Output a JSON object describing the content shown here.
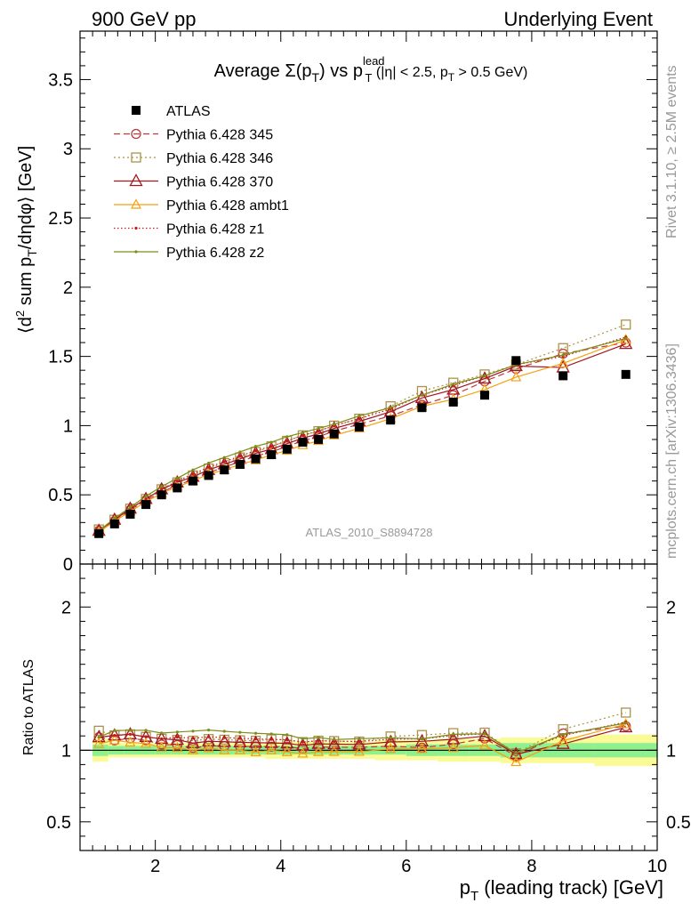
{
  "header": {
    "left": "900 GeV pp",
    "right": "Underlying Event",
    "side_top": "Rivet 3.1.10, ≥ 2.5M events",
    "side_bottom": "mcplots.cern.ch [arXiv:1306.3436]",
    "watermark": "ATLAS_2010_S8894728"
  },
  "plot_title": {
    "prefix": "Average Σ(p",
    "sub_T1": "T",
    "middle": ") vs p",
    "sup_lead": "lead",
    "sub_T2": "T",
    "cut1": " (|η| < 2.5, p",
    "sub_T3": "T",
    "cut2": " > 0.5 GeV)"
  },
  "axes": {
    "ylabel": "⟨d² sum p_T/dηdφ⟩ [GeV]",
    "ylabel_parts": {
      "a": "⟨d",
      "sup": "2",
      "b": " sum p",
      "sub": "T",
      "c": "/dηdφ⟩ [GeV]"
    },
    "ratio_ylabel": "Ratio to ATLAS",
    "xlabel_parts": {
      "a": "p",
      "sub": "T",
      "b": " (leading track) [GeV]"
    }
  },
  "colors": {
    "ATLAS": "#000000",
    "p345": "#be3a3a",
    "p346": "#ac9248",
    "p370": "#a21621",
    "ambt1": "#f5a00f",
    "z1": "#c81818",
    "z2": "#7b8e16",
    "band_inner": "#8ef08e",
    "band_outer": "#fafa96"
  },
  "chart_data": {
    "type": "scatter",
    "xlim": [
      0.8,
      10.0
    ],
    "ylim_main": [
      0,
      3.85
    ],
    "ylim_ratio": [
      0.3,
      2.3
    ],
    "x_ticks": [
      2,
      4,
      6,
      8,
      10
    ],
    "y_ticks_main": [
      0,
      0.5,
      1,
      1.5,
      2,
      2.5,
      3,
      3.5
    ],
    "y_ticks_ratio": [
      0.5,
      1,
      2
    ],
    "legend_position": "top-left",
    "x": [
      1.1,
      1.35,
      1.6,
      1.85,
      2.1,
      2.35,
      2.6,
      2.85,
      3.1,
      3.35,
      3.6,
      3.85,
      4.1,
      4.35,
      4.6,
      4.85,
      5.25,
      5.75,
      6.25,
      6.75,
      7.25,
      7.75,
      8.5,
      9.5
    ],
    "series": [
      {
        "name": "ATLAS",
        "key": "ATLAS",
        "marker": "square_filled",
        "dash": "none",
        "values": [
          0.22,
          0.29,
          0.36,
          0.43,
          0.5,
          0.55,
          0.6,
          0.64,
          0.68,
          0.72,
          0.76,
          0.79,
          0.83,
          0.88,
          0.9,
          0.94,
          0.99,
          1.04,
          1.13,
          1.17,
          1.22,
          1.47,
          1.36,
          1.37
        ]
      },
      {
        "name": "Pythia 6.428 345",
        "key": "p345",
        "marker": "circle_open",
        "dash": "7,4",
        "values": [
          0.24,
          0.31,
          0.39,
          0.46,
          0.52,
          0.57,
          0.61,
          0.66,
          0.7,
          0.74,
          0.78,
          0.81,
          0.85,
          0.89,
          0.92,
          0.96,
          1.01,
          1.07,
          1.15,
          1.22,
          1.32,
          1.41,
          1.52,
          1.6
        ]
      },
      {
        "name": "Pythia 6.428 346",
        "key": "p346",
        "marker": "square_open",
        "dash": "2,3",
        "values": [
          0.25,
          0.32,
          0.4,
          0.47,
          0.54,
          0.59,
          0.64,
          0.69,
          0.73,
          0.77,
          0.81,
          0.85,
          0.89,
          0.93,
          0.96,
          1.0,
          1.05,
          1.14,
          1.25,
          1.31,
          1.37,
          1.44,
          1.56,
          1.73
        ]
      },
      {
        "name": "Pythia 6.428 370",
        "key": "p370",
        "marker": "triangle_open",
        "dash": "none",
        "values": [
          0.24,
          0.32,
          0.4,
          0.47,
          0.54,
          0.59,
          0.63,
          0.68,
          0.72,
          0.76,
          0.8,
          0.83,
          0.87,
          0.91,
          0.94,
          0.98,
          1.03,
          1.1,
          1.2,
          1.26,
          1.34,
          1.43,
          1.42,
          1.59
        ]
      },
      {
        "name": "Pythia 6.428 ambt1",
        "key": "ambt1",
        "marker": "triangle_open_small",
        "dash": "none",
        "values": [
          0.23,
          0.31,
          0.38,
          0.45,
          0.51,
          0.56,
          0.6,
          0.65,
          0.68,
          0.72,
          0.75,
          0.79,
          0.82,
          0.86,
          0.89,
          0.93,
          0.98,
          1.05,
          1.14,
          1.19,
          1.26,
          1.35,
          1.45,
          1.62
        ]
      },
      {
        "name": "Pythia 6.428 z1",
        "key": "z1",
        "marker": "dot",
        "dash": "1.5,2.5",
        "values": [
          0.24,
          0.32,
          0.4,
          0.47,
          0.54,
          0.6,
          0.65,
          0.7,
          0.74,
          0.78,
          0.82,
          0.85,
          0.89,
          0.93,
          0.96,
          1.0,
          1.05,
          1.12,
          1.22,
          1.29,
          1.36,
          1.44,
          1.5,
          1.64
        ]
      },
      {
        "name": "Pythia 6.428 z2",
        "key": "z2",
        "marker": "dot",
        "dash": "none",
        "values": [
          0.24,
          0.33,
          0.41,
          0.49,
          0.56,
          0.62,
          0.68,
          0.73,
          0.77,
          0.81,
          0.85,
          0.88,
          0.92,
          0.95,
          0.98,
          1.01,
          1.07,
          1.13,
          1.22,
          1.3,
          1.36,
          1.44,
          1.51,
          1.63
        ]
      }
    ],
    "ratio_band": {
      "x_edges": [
        1.0,
        1.25,
        1.5,
        1.75,
        2.0,
        2.25,
        2.5,
        2.75,
        3.0,
        3.25,
        3.5,
        3.75,
        4.0,
        4.25,
        4.5,
        4.75,
        5.0,
        5.5,
        6.0,
        6.5,
        7.0,
        7.5,
        8.0,
        9.0,
        10.0
      ],
      "inner_low": [
        0.96,
        0.97,
        0.97,
        0.97,
        0.97,
        0.97,
        0.97,
        0.97,
        0.97,
        0.97,
        0.97,
        0.97,
        0.97,
        0.97,
        0.97,
        0.97,
        0.97,
        0.97,
        0.96,
        0.96,
        0.96,
        0.95,
        0.95,
        0.95
      ],
      "inner_high": [
        1.04,
        1.03,
        1.03,
        1.03,
        1.03,
        1.03,
        1.03,
        1.03,
        1.03,
        1.03,
        1.03,
        1.03,
        1.03,
        1.03,
        1.03,
        1.03,
        1.03,
        1.03,
        1.04,
        1.04,
        1.04,
        1.05,
        1.05,
        1.05
      ],
      "outer_low": [
        0.92,
        0.95,
        0.95,
        0.95,
        0.95,
        0.95,
        0.95,
        0.95,
        0.95,
        0.95,
        0.95,
        0.94,
        0.94,
        0.94,
        0.94,
        0.94,
        0.94,
        0.93,
        0.93,
        0.92,
        0.92,
        0.91,
        0.91,
        0.89
      ],
      "outer_high": [
        1.08,
        1.05,
        1.05,
        1.05,
        1.05,
        1.05,
        1.05,
        1.05,
        1.05,
        1.05,
        1.05,
        1.06,
        1.06,
        1.06,
        1.06,
        1.06,
        1.06,
        1.07,
        1.07,
        1.08,
        1.08,
        1.09,
        1.09,
        1.11
      ]
    }
  }
}
